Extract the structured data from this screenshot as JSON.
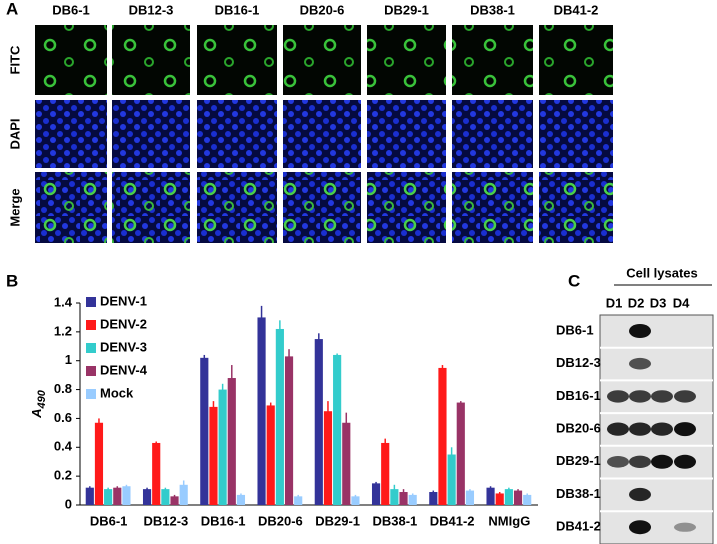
{
  "panel_a": {
    "label": "A",
    "columns": [
      "DB6-1",
      "DB12-3",
      "DB16-1",
      "DB20-6",
      "DB29-1",
      "DB38-1",
      "DB41-2"
    ],
    "rows": [
      "FITC",
      "DAPI",
      "Merge"
    ]
  },
  "chart_data": {
    "type": "bar",
    "label": "B",
    "ylabel": "A",
    "ylabel_sub": "490",
    "categories": [
      "DB6-1",
      "DB12-3",
      "DB16-1",
      "DB20-6",
      "DB29-1",
      "DB38-1",
      "DB41-2",
      "NMIgG"
    ],
    "series": [
      {
        "name": "DENV-1",
        "color": "#333399",
        "values": [
          0.12,
          0.11,
          1.02,
          1.3,
          1.15,
          0.15,
          0.09,
          0.12
        ],
        "errors": [
          0.01,
          0.01,
          0.02,
          0.08,
          0.04,
          0.01,
          0.01,
          0.01
        ]
      },
      {
        "name": "DENV-2",
        "color": "#ff1a1a",
        "values": [
          0.57,
          0.43,
          0.68,
          0.69,
          0.65,
          0.43,
          0.95,
          0.08
        ],
        "errors": [
          0.03,
          0.01,
          0.04,
          0.02,
          0.07,
          0.03,
          0.02,
          0.01
        ]
      },
      {
        "name": "DENV-3",
        "color": "#33cccc",
        "values": [
          0.11,
          0.11,
          0.8,
          1.22,
          1.04,
          0.11,
          0.35,
          0.11
        ],
        "errors": [
          0.01,
          0.01,
          0.04,
          0.06,
          0.01,
          0.03,
          0.05,
          0.01
        ]
      },
      {
        "name": "DENV-4",
        "color": "#993366",
        "values": [
          0.12,
          0.06,
          0.88,
          1.03,
          0.57,
          0.09,
          0.71,
          0.1
        ],
        "errors": [
          0.01,
          0.01,
          0.09,
          0.05,
          0.07,
          0.02,
          0.01,
          0.01
        ]
      },
      {
        "name": "Mock",
        "color": "#99ccff",
        "values": [
          0.13,
          0.14,
          0.07,
          0.06,
          0.06,
          0.07,
          0.1,
          0.07
        ],
        "errors": [
          0.01,
          0.03,
          0.01,
          0.01,
          0.01,
          0.01,
          0.01,
          0.01
        ]
      }
    ],
    "ylim": [
      0,
      1.4
    ],
    "yticks": [
      0,
      0.2,
      0.4,
      0.6,
      0.8,
      1,
      1.2,
      1.4
    ],
    "grid": false,
    "legend": "upper left"
  },
  "panel_c": {
    "label": "C",
    "title": "Cell lysates",
    "lanes": [
      "D1",
      "D2",
      "D3",
      "D4"
    ],
    "rows": [
      "DB6-1",
      "DB12-3",
      "DB16-1",
      "DB20-6",
      "DB29-1",
      "DB38-1",
      "DB41-2"
    ]
  }
}
